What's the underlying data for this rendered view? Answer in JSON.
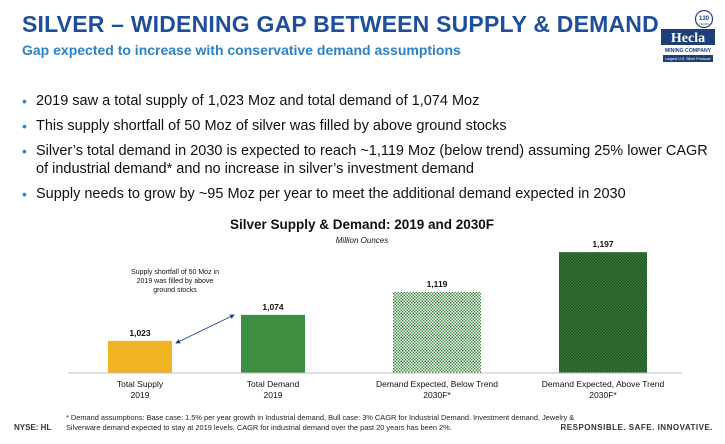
{
  "header": {
    "title": "SILVER – WIDENING GAP BETWEEN SUPPLY & DEMAND",
    "subtitle": "Gap expected to increase with conservative demand assumptions"
  },
  "logo": {
    "badge_number": "130",
    "badge_text": "YEARS",
    "brand": "Hecla",
    "company": "MINING COMPANY",
    "tagline": "Largest U.S. Silver Producer"
  },
  "bullets": [
    "2019 saw a total supply of 1,023 Moz and total demand of 1,074 Moz",
    "This supply shortfall of 50 Moz of silver was filled by above ground stocks",
    "Silver’s total demand in 2030 is expected to reach ~1,119 Moz (below trend) assuming 25% lower CAGR of industrial demand* and no increase in silver’s investment demand",
    "Supply needs to grow by ~95 Moz per year to meet the additional demand expected in 2030"
  ],
  "chart_data": {
    "type": "bar",
    "title": "Silver Supply & Demand: 2019 and 2030F",
    "subtitle": "Million Ounces",
    "categories": [
      [
        "Total Supply",
        "2019"
      ],
      [
        "Total Demand",
        "2019"
      ],
      [
        "Demand Expected, Below Trend",
        "2030F*"
      ],
      [
        "Demand Expected, Above Trend",
        "2030F*"
      ]
    ],
    "values": [
      1023,
      1074,
      1119,
      1197
    ],
    "value_labels": [
      "1,023",
      "1,074",
      "1,119",
      "1,197"
    ],
    "colors": [
      "#f0b323",
      "#3e8e41",
      "#3e8e41",
      "#2a6b2d"
    ],
    "annotation": [
      "Supply shortfall of 50 Moz in",
      "2019 was filled by above",
      "ground stocks"
    ],
    "grid": false
  },
  "footnote": "* Demand assumptions: Base case: 1.5% per year growth in Industrial demand, Bull case: 3% CAGR for Industrial Demand. Investment demand, Jewelry & Silverware demand expected to stay at 2019 levels. CAGR for industrial demand over the past 20 years has been 2%.",
  "footer": {
    "ticker": "NYSE: HL",
    "tagline": "RESPONSIBLE. SAFE. INNOVATIVE."
  }
}
